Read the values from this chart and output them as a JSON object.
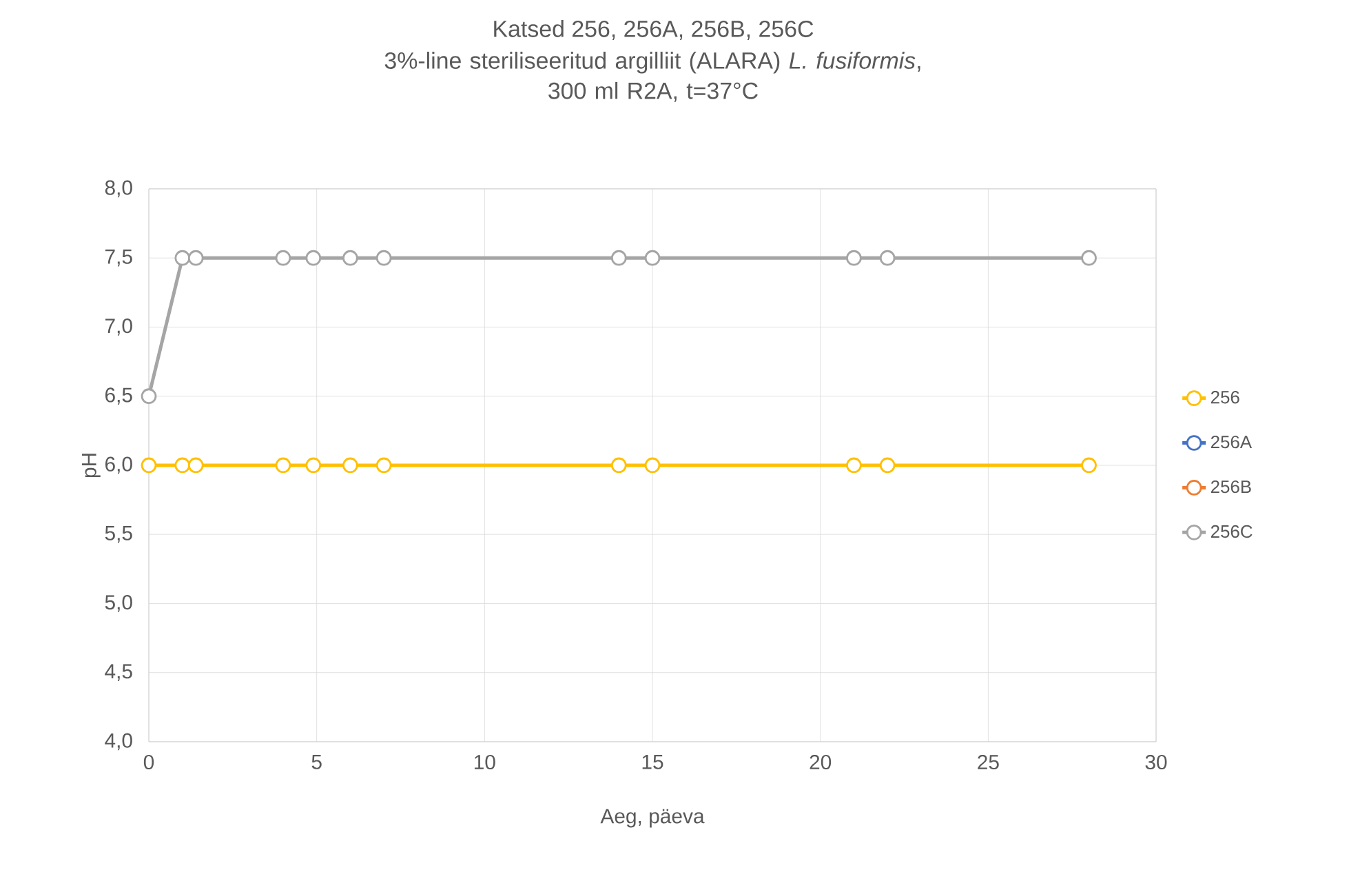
{
  "chart_data": {
    "type": "line",
    "title": "Katsed 256, 256A, 256B, 256C",
    "subtitle": "3%-line steriliseeritud argilliit (ALARA) *L. fusiformis*,\n300 ml R2A,  t=37°C",
    "xlabel": "Aeg, päeva",
    "ylabel": "pH",
    "x": [
      0,
      1,
      1.4,
      4,
      4.9,
      6,
      7,
      14,
      15,
      21,
      22,
      28
    ],
    "series": [
      {
        "name": "256",
        "color": "#ffc000",
        "values": [
          6,
          6,
          6,
          6,
          6,
          6,
          6,
          6,
          6,
          6,
          6,
          6
        ]
      },
      {
        "name": "256A",
        "color": "#4472c4",
        "values": [
          null,
          null,
          null,
          null,
          null,
          null,
          null,
          null,
          null,
          null,
          null,
          null
        ]
      },
      {
        "name": "256B",
        "color": "#ed7d31",
        "values": [
          null,
          null,
          null,
          null,
          null,
          null,
          null,
          null,
          null,
          null,
          null,
          null
        ]
      },
      {
        "name": "256C",
        "color": "#a5a5a5",
        "values": [
          6.5,
          7.5,
          7.5,
          7.5,
          7.5,
          7.5,
          7.5,
          7.5,
          7.5,
          7.5,
          7.5,
          7.5
        ]
      }
    ],
    "xlim": [
      0,
      30
    ],
    "xticks": [
      0,
      5,
      10,
      15,
      20,
      25,
      30
    ],
    "ylim": [
      4,
      8
    ],
    "yticks": [
      {
        "value": 4,
        "label": "4,0"
      },
      {
        "value": 4.5,
        "label": "4,5"
      },
      {
        "value": 5,
        "label": "5,0"
      },
      {
        "value": 5.5,
        "label": "5,5"
      },
      {
        "value": 6,
        "label": "6,0"
      },
      {
        "value": 6.5,
        "label": "6,5"
      },
      {
        "value": 7,
        "label": "7,0"
      },
      {
        "value": 7.5,
        "label": "7,5"
      },
      {
        "value": 8,
        "label": "8,0"
      }
    ],
    "grid": true,
    "legend": "right",
    "marker": "circle",
    "line_style": "solid"
  }
}
